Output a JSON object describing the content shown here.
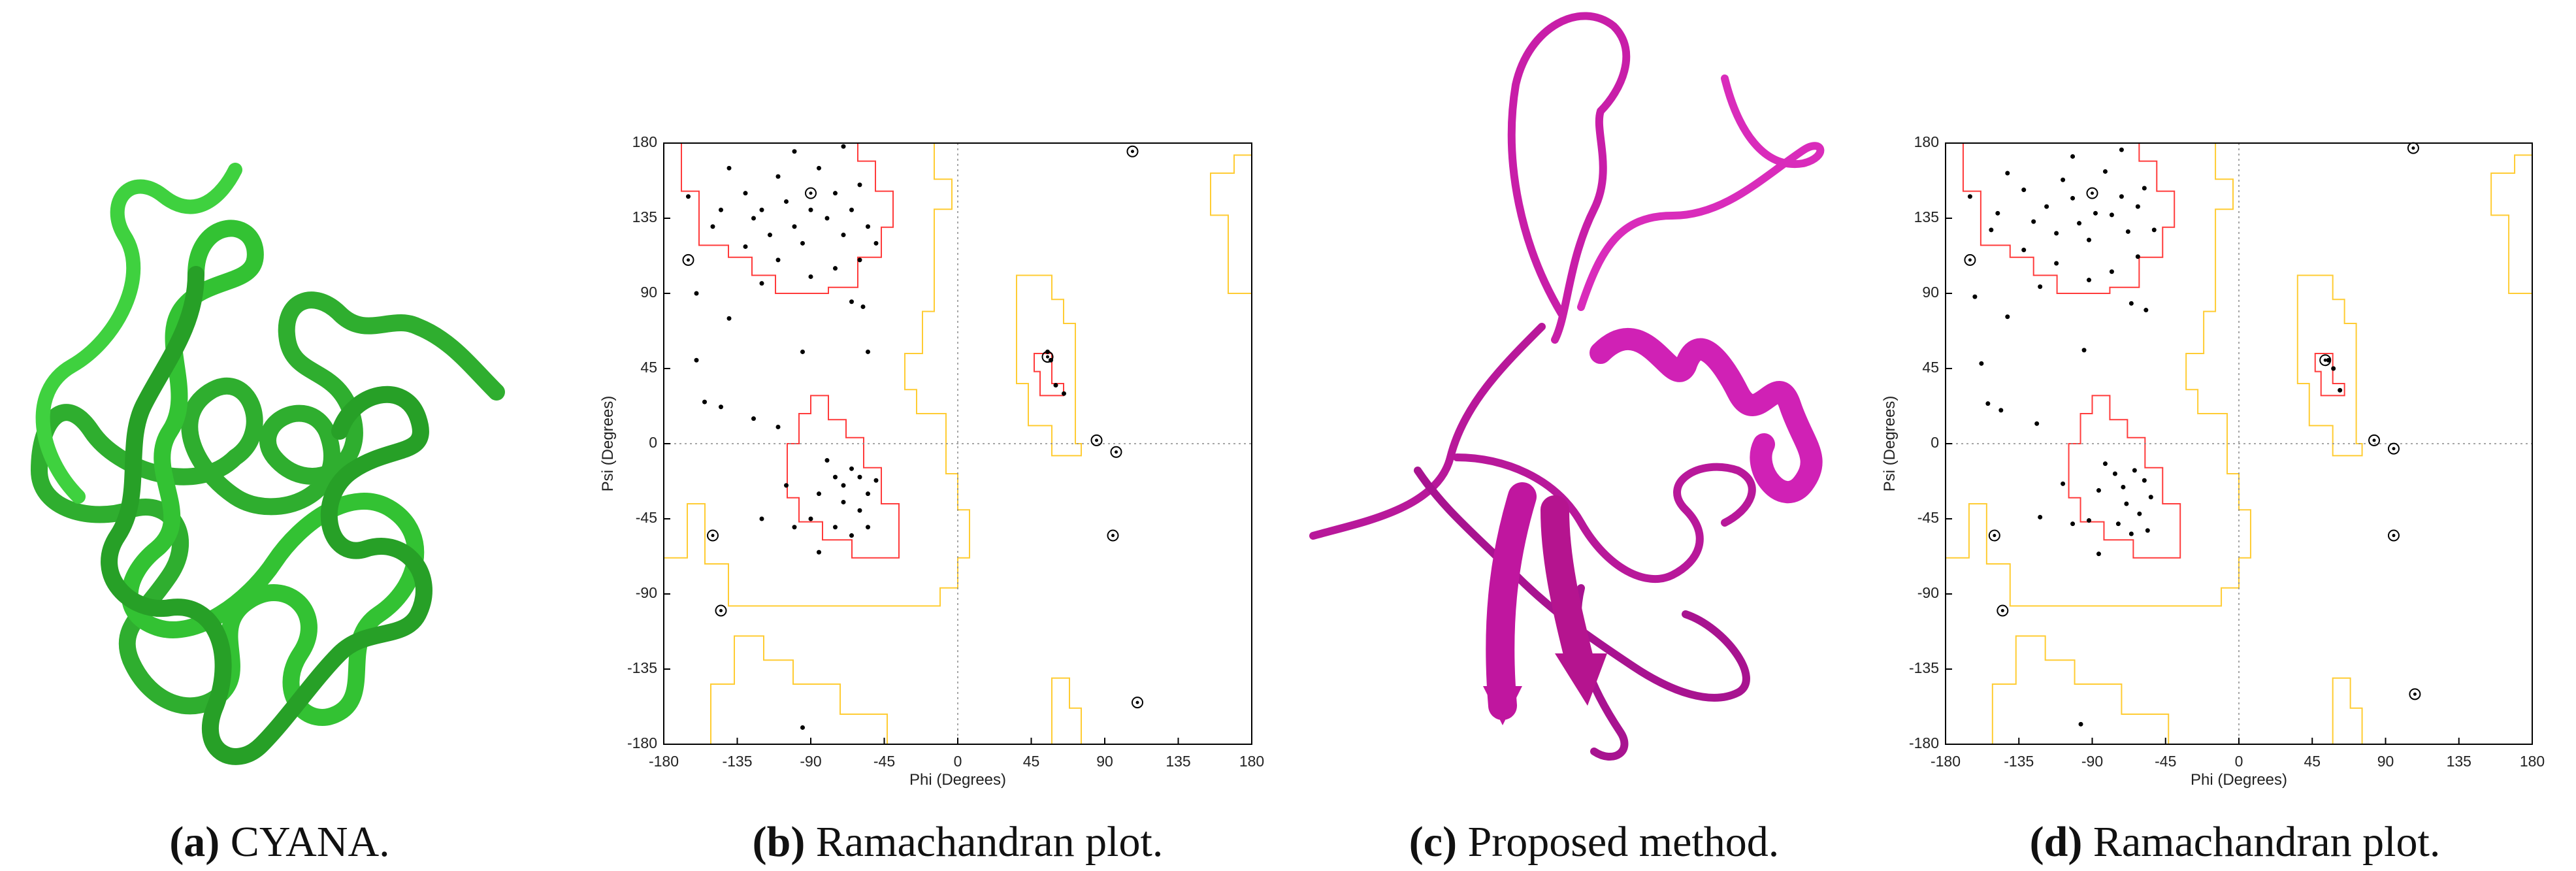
{
  "captions": [
    {
      "label": "(a)",
      "text": "CYANA."
    },
    {
      "label": "(b)",
      "text": "Ramachandran plot."
    },
    {
      "label": "(c)",
      "text": "Proposed method."
    },
    {
      "label": "(d)",
      "text": "Ramachandran plot."
    }
  ],
  "chart_data": [
    {
      "type": "scatter",
      "xlabel": "Phi (Degrees)",
      "ylabel": "Psi (Degrees)",
      "xlim": [
        -180,
        180
      ],
      "ylim": [
        -180,
        180
      ],
      "xticks": [
        -180,
        -135,
        -90,
        -45,
        0,
        45,
        90,
        135,
        180
      ],
      "yticks": [
        -180,
        -135,
        -90,
        -45,
        0,
        45,
        90,
        135,
        180
      ],
      "zero_lines": true,
      "core_region_color": "#ff3b3b",
      "allowed_region_color": "#ffcc33",
      "series": [
        {
          "marker": "dot",
          "color": "#000000",
          "x": [
            -165,
            -150,
            -140,
            -130,
            -125,
            -120,
            -115,
            -110,
            -105,
            -100,
            -95,
            -90,
            -85,
            -80,
            -75,
            -70,
            -65,
            -60,
            -55,
            -50,
            -60,
            -75,
            -90,
            -110,
            -130,
            -145,
            -100,
            -70,
            -120,
            -160,
            -140,
            -95,
            -65,
            -58,
            -55,
            -80,
            -75,
            -70,
            -65,
            -60,
            -55,
            -70,
            -60,
            -85,
            -75,
            -65,
            -55,
            -90,
            -100,
            -105,
            -110,
            -125,
            -155,
            -145,
            -85,
            -120,
            -95,
            -160,
            -50,
            55,
            57,
            60,
            65
          ],
          "values": [
            148,
            130,
            165,
            150,
            135,
            140,
            125,
            160,
            145,
            130,
            120,
            140,
            165,
            135,
            150,
            125,
            140,
            155,
            130,
            120,
            110,
            105,
            100,
            110,
            118,
            140,
            175,
            178,
            96,
            90,
            75,
            55,
            85,
            82,
            55,
            -10,
            -20,
            -25,
            -15,
            -20,
            -30,
            -35,
            -40,
            -30,
            -50,
            -55,
            -50,
            -45,
            -50,
            -25,
            10,
            15,
            25,
            22,
            -65,
            -45,
            -170,
            50,
            -22,
            55,
            50,
            35,
            30
          ]
        },
        {
          "marker": "circled",
          "color": "#000000",
          "x": [
            -90,
            -165,
            -150,
            -145,
            55,
            85,
            97,
            95,
            107,
            110
          ],
          "values": [
            150,
            110,
            -55,
            -100,
            52,
            2,
            -5,
            -55,
            175,
            -155
          ]
        }
      ]
    },
    {
      "type": "scatter",
      "xlabel": "Phi (Degrees)",
      "ylabel": "Psi (Degrees)",
      "xlim": [
        -180,
        180
      ],
      "ylim": [
        -180,
        180
      ],
      "xticks": [
        -180,
        -135,
        -90,
        -45,
        0,
        45,
        90,
        135,
        180
      ],
      "yticks": [
        -180,
        -135,
        -90,
        -45,
        0,
        45,
        90,
        135,
        180
      ],
      "zero_lines": true,
      "core_region_color": "#ff3b3b",
      "allowed_region_color": "#ffcc33",
      "series": [
        {
          "marker": "dot",
          "color": "#000000",
          "x": [
            -165,
            -152,
            -142,
            -132,
            -126,
            -118,
            -112,
            -108,
            -102,
            -98,
            -92,
            -88,
            -82,
            -78,
            -72,
            -68,
            -62,
            -58,
            -52,
            -62,
            -78,
            -92,
            -112,
            -132,
            -148,
            -102,
            -72,
            -122,
            -162,
            -142,
            -95,
            -66,
            -57,
            -82,
            -76,
            -71,
            -64,
            -58,
            -54,
            -69,
            -61,
            -86,
            -74,
            -66,
            -56,
            -92,
            -102,
            -108,
            -124,
            -154,
            -146,
            -86,
            -122,
            -97,
            -158,
            55,
            58,
            62
          ],
          "values": [
            148,
            128,
            162,
            152,
            133,
            142,
            126,
            158,
            147,
            132,
            122,
            138,
            163,
            137,
            148,
            127,
            142,
            153,
            128,
            112,
            103,
            98,
            108,
            116,
            138,
            172,
            176,
            94,
            88,
            76,
            56,
            84,
            80,
            -12,
            -18,
            -26,
            -16,
            -22,
            -32,
            -36,
            -42,
            -28,
            -48,
            -54,
            -52,
            -46,
            -48,
            -24,
            12,
            24,
            20,
            -66,
            -44,
            -168,
            48,
            50,
            45,
            32
          ]
        },
        {
          "marker": "circled",
          "color": "#000000",
          "x": [
            -90,
            -165,
            -150,
            -145,
            53,
            83,
            95,
            95,
            107,
            108
          ],
          "values": [
            150,
            110,
            -55,
            -100,
            50,
            2,
            -3,
            -55,
            177,
            -150
          ]
        }
      ]
    }
  ]
}
